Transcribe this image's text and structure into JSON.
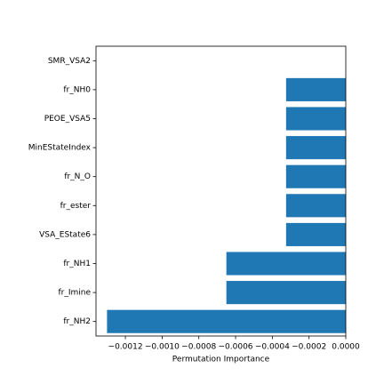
{
  "chart_data": {
    "type": "barh",
    "categories": [
      "SMR_VSA2",
      "fr_NH0",
      "PEOE_VSA5",
      "MinEStateIndex",
      "fr_N_O",
      "fr_ester",
      "VSA_EState6",
      "fr_NH1",
      "fr_Imine",
      "fr_NH2"
    ],
    "values": [
      0,
      -0.000325,
      -0.000325,
      -0.000325,
      -0.000325,
      -0.000325,
      -0.000325,
      -0.00065,
      -0.00065,
      -0.0013
    ],
    "color": "#1f77b4",
    "x_label": "Permutation Importance",
    "xlim": [
      -0.00136,
      0
    ],
    "xticks": [
      {
        "value": -0.0012,
        "label": "−0.0012"
      },
      {
        "value": -0.001,
        "label": "−0.0010"
      },
      {
        "value": -0.0008,
        "label": "−0.0008"
      },
      {
        "value": -0.0006,
        "label": "−0.0006"
      },
      {
        "value": -0.0004,
        "label": "−0.0004"
      },
      {
        "value": -0.0002,
        "label": "−0.0002"
      },
      {
        "value": 0,
        "label": "0.0000"
      }
    ]
  }
}
